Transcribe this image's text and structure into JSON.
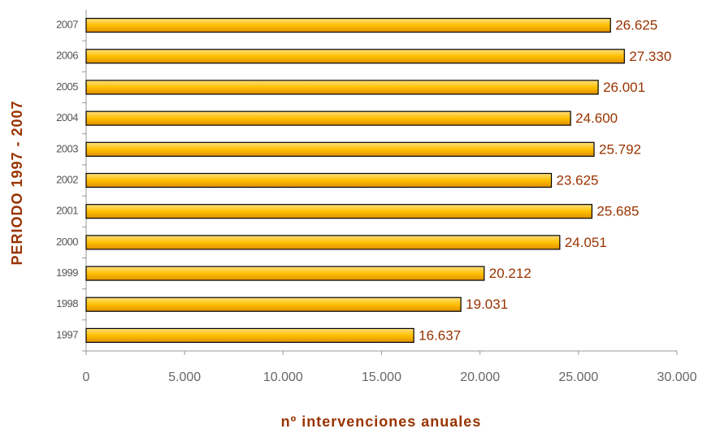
{
  "chart_data": {
    "type": "bar",
    "orientation": "horizontal",
    "x_label": "nº intervenciones anuales",
    "y_label": "PERIODO 1997 - 2007",
    "categories": [
      "1997",
      "1998",
      "1999",
      "2000",
      "2001",
      "2002",
      "2003",
      "2004",
      "2005",
      "2006",
      "2007"
    ],
    "values": [
      16637,
      19031,
      20212,
      24051,
      25685,
      23625,
      25792,
      24600,
      26001,
      27330,
      26625
    ],
    "value_labels": [
      "16.637",
      "19.031",
      "20.212",
      "24.051",
      "25.685",
      "23.625",
      "25.792",
      "24.600",
      "26.001",
      "27.330",
      "26.625"
    ],
    "color": "#ffc000",
    "xlim": [
      0,
      30000
    ],
    "xticks": [
      0,
      {
        "value": 5000,
        "label": "5.000"
      },
      {
        "value": 10000,
        "label": "10.000"
      },
      {
        "value": 15000,
        "label": "15.000"
      },
      {
        "value": 20000,
        "label": "20.000"
      },
      {
        "value": 25000,
        "label": "25.000"
      },
      {
        "value": 30000,
        "label": "30.000"
      }
    ],
    "grid": false
  }
}
